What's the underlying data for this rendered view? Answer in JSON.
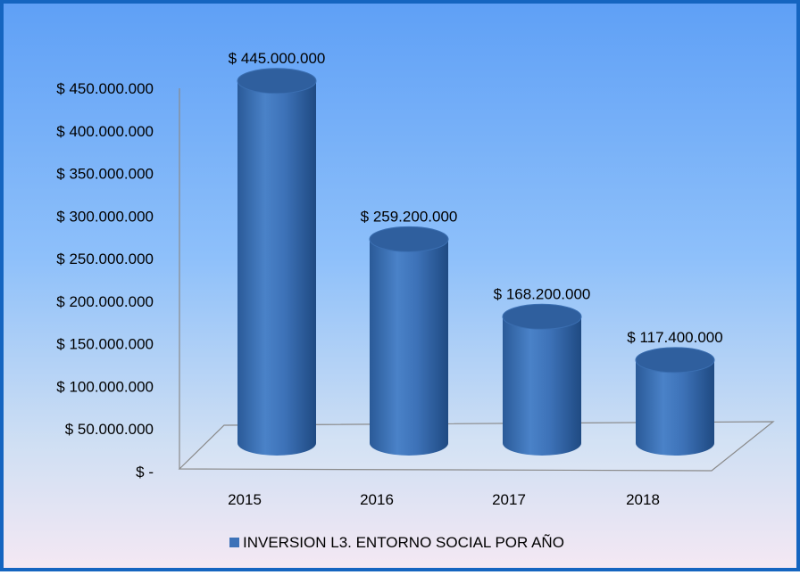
{
  "chart_data": {
    "type": "bar",
    "style": "3d-cylinder",
    "title": "",
    "xlabel": "",
    "ylabel": "",
    "categories": [
      "2015",
      "2016",
      "2017",
      "2018"
    ],
    "series": [
      {
        "name": "INVERSION L3. ENTORNO SOCIAL POR AÑO",
        "values": [
          445000000,
          259200000,
          168200000,
          117400000
        ],
        "data_labels": [
          "$ 445.000.000",
          "$ 259.200.000",
          "$ 168.200.000",
          "$ 117.400.000"
        ],
        "color": "#3d72b8"
      }
    ],
    "ylim": [
      0,
      450000000
    ],
    "y_ticks": [
      0,
      50000000,
      100000000,
      150000000,
      200000000,
      250000000,
      300000000,
      350000000,
      400000000,
      450000000
    ],
    "y_tick_labels": [
      "$ -",
      "$ 50.000.000",
      "$ 100.000.000",
      "$ 150.000.000",
      "$ 200.000.000",
      "$ 250.000.000",
      "$ 300.000.000",
      "$ 350.000.000",
      "$ 400.000.000",
      "$ 450.000.000"
    ],
    "grid": false,
    "legend_position": "bottom"
  },
  "colors": {
    "frame_border": "#1565C0",
    "bar_fill": "#3d72b8",
    "bar_top": "#2f5f9e",
    "floor_line": "#8a8a8a"
  }
}
